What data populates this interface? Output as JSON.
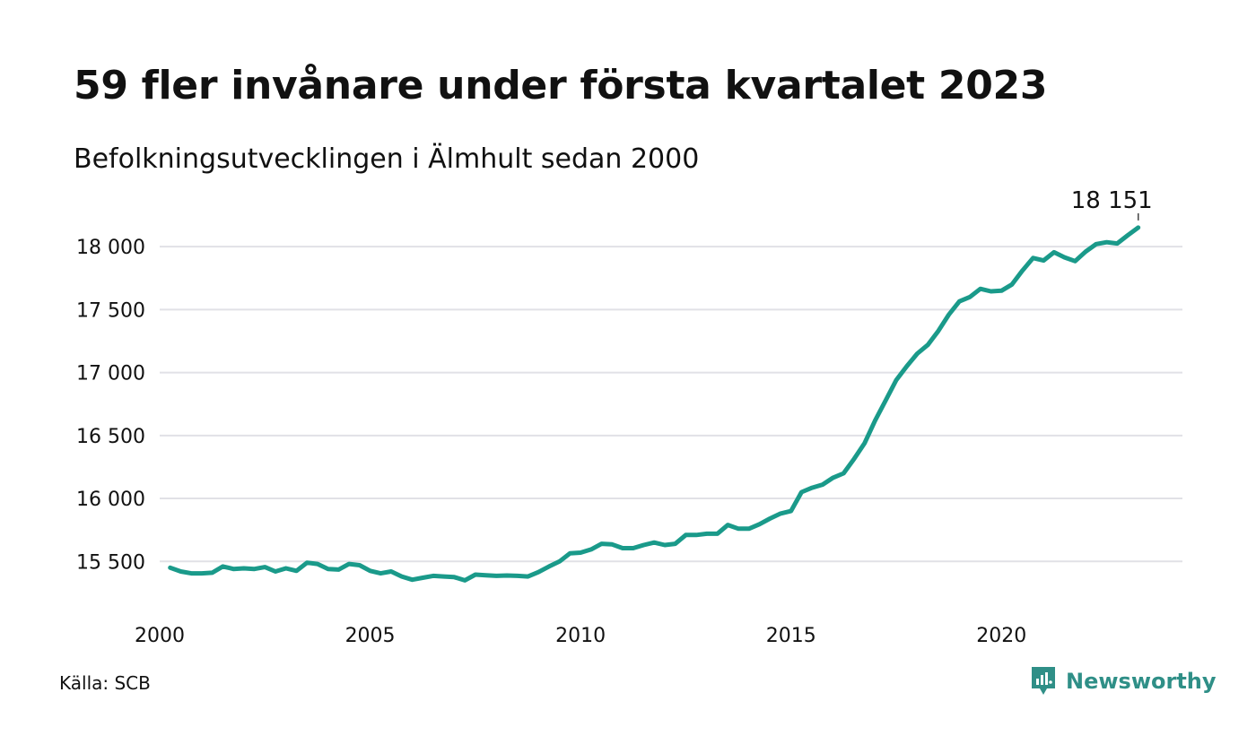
{
  "header": {
    "title": "59 fler invånare under första kvartalet 2023",
    "subtitle": "Befolkningsutvecklingen i Älmhult sedan 2000"
  },
  "footer": {
    "source": "Källa: SCB",
    "brand": "Newsworthy"
  },
  "colors": {
    "line": "#1a9a8a",
    "grid": "#e1e1e6",
    "brand": "#2f8f87"
  },
  "chart_data": {
    "type": "line",
    "title": "59 fler invånare under första kvartalet 2023",
    "subtitle": "Befolkningsutvecklingen i Älmhult sedan 2000",
    "xlabel": "",
    "ylabel": "",
    "x_ticks": [
      {
        "value": 2000,
        "label": "2000"
      },
      {
        "value": 2005,
        "label": "2005"
      },
      {
        "value": 2010,
        "label": "2010"
      },
      {
        "value": 2015,
        "label": "2015"
      },
      {
        "value": 2020,
        "label": "2020"
      }
    ],
    "y_ticks": [
      {
        "value": 15500,
        "label": "15 500"
      },
      {
        "value": 16000,
        "label": "16 000"
      },
      {
        "value": 16500,
        "label": "16 500"
      },
      {
        "value": 17000,
        "label": "17 000"
      },
      {
        "value": 17500,
        "label": "17 500"
      },
      {
        "value": 18000,
        "label": "18 000"
      }
    ],
    "xlim": [
      2000,
      2024.3
    ],
    "ylim": [
      15260,
      18250
    ],
    "grid": true,
    "end_label": "18 151",
    "series": [
      {
        "x": [
          2000.25,
          2000.5,
          2000.75,
          2001.0,
          2001.25,
          2001.5,
          2001.75,
          2002.0,
          2002.25,
          2002.5,
          2002.75,
          2003.0,
          2003.25,
          2003.5,
          2003.75,
          2004.0,
          2004.25,
          2004.5,
          2004.75,
          2005.0,
          2005.25,
          2005.5,
          2005.75,
          2006.0,
          2006.25,
          2006.5,
          2006.75,
          2007.0,
          2007.25,
          2007.5,
          2007.75,
          2008.0,
          2008.25,
          2008.5,
          2008.75,
          2009.0,
          2009.25,
          2009.5,
          2009.75,
          2010.0,
          2010.25,
          2010.5,
          2010.75,
          2011.0,
          2011.25,
          2011.5,
          2011.75,
          2012.0,
          2012.25,
          2012.5,
          2012.75,
          2013.0,
          2013.25,
          2013.5,
          2013.75,
          2014.0,
          2014.25,
          2014.5,
          2014.75,
          2015.0,
          2015.25,
          2015.5,
          2015.75,
          2016.0,
          2016.25,
          2016.5,
          2016.75,
          2017.0,
          2017.25,
          2017.5,
          2017.75,
          2018.0,
          2018.25,
          2018.5,
          2018.75,
          2019.0,
          2019.25,
          2019.5,
          2019.75,
          2020.0,
          2020.25,
          2020.5,
          2020.75,
          2021.0,
          2021.25,
          2021.5,
          2021.75,
          2022.0,
          2022.25,
          2022.5,
          2022.75,
          2023.0,
          2023.25
        ],
        "values": [
          15450,
          15420,
          15405,
          15405,
          15410,
          15460,
          15440,
          15445,
          15440,
          15455,
          15420,
          15445,
          15425,
          15490,
          15480,
          15440,
          15435,
          15480,
          15470,
          15425,
          15405,
          15420,
          15380,
          15355,
          15370,
          15385,
          15380,
          15375,
          15350,
          15395,
          15390,
          15385,
          15388,
          15385,
          15380,
          15415,
          15460,
          15500,
          15565,
          15570,
          15595,
          15640,
          15635,
          15605,
          15605,
          15630,
          15650,
          15630,
          15640,
          15710,
          15710,
          15720,
          15720,
          15790,
          15760,
          15760,
          15795,
          15840,
          15880,
          15900,
          16050,
          16085,
          16110,
          16165,
          16200,
          16315,
          16440,
          16620,
          16780,
          16940,
          17050,
          17150,
          17220,
          17330,
          17460,
          17565,
          17600,
          17665,
          17645,
          17650,
          17700,
          17810,
          17910,
          17890,
          17955,
          17915,
          17885,
          17960,
          18020,
          18035,
          18025,
          18090,
          18151
        ]
      }
    ]
  }
}
